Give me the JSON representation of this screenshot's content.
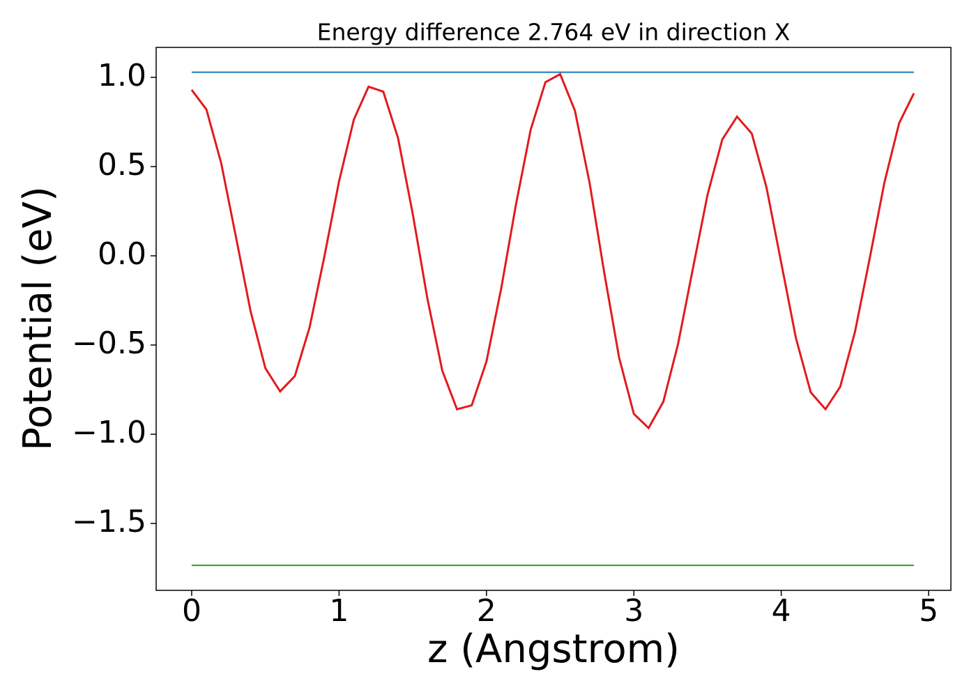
{
  "chart_data": {
    "type": "line",
    "title": "Energy difference 2.764 eV in direction X",
    "x_label": "z (Angstrom)",
    "y_label": "Potential (eV)",
    "xlim": [
      -0.241,
      5.151
    ],
    "ylim": [
      -1.875,
      1.168
    ],
    "xticks": [
      0,
      1,
      2,
      3,
      4,
      5
    ],
    "yticks": [
      {
        "value": -1.5,
        "label": "−1.5"
      },
      {
        "value": -1,
        "label": "−1.0"
      },
      {
        "value": -0.5,
        "label": "−0.5"
      },
      {
        "value": 0,
        "label": "0.0"
      },
      0.5,
      {
        "value": 1,
        "label": "1.0"
      }
    ],
    "series": [
      {
        "color": "#1f77b4",
        "x": [
          0,
          4.9
        ],
        "values": [
          1.029,
          1.029
        ]
      },
      {
        "color": "#2ca02c",
        "x": [
          0,
          4.9
        ],
        "values": [
          -1.735,
          -1.735
        ]
      },
      {
        "color": "#e31a1c",
        "x": [
          0,
          0.1,
          0.2,
          0.3,
          0.4,
          0.5,
          0.6,
          0.7,
          0.8,
          0.9,
          1.0,
          1.1,
          1.2,
          1.3,
          1.4,
          1.5,
          1.6,
          1.7,
          1.8,
          1.9,
          2.0,
          2.1,
          2.2,
          2.3,
          2.4,
          2.5,
          2.6,
          2.7,
          2.8,
          2.9,
          3.0,
          3.1,
          3.2,
          3.3,
          3.4,
          3.5,
          3.6,
          3.7,
          3.8,
          3.9,
          4.0,
          4.1,
          4.2,
          4.3,
          4.4,
          4.5,
          4.6,
          4.7,
          4.8,
          4.9
        ],
        "values": [
          0.93,
          0.82,
          0.52,
          0.107,
          -0.312,
          -0.63,
          -0.76,
          -0.674,
          -0.401,
          -0.005,
          0.418,
          0.763,
          0.948,
          0.92,
          0.66,
          0.234,
          -0.243,
          -0.643,
          -0.86,
          -0.838,
          -0.592,
          -0.183,
          0.287,
          0.707,
          0.973,
          1.018,
          0.814,
          0.407,
          -0.099,
          -0.571,
          -0.886,
          -0.965,
          -0.818,
          -0.494,
          -0.074,
          0.343,
          0.652,
          0.78,
          0.685,
          0.383,
          -0.04,
          -0.463,
          -0.765,
          -0.86,
          -0.734,
          -0.427,
          -0.015,
          0.411,
          0.744,
          0.911
        ]
      }
    ]
  }
}
